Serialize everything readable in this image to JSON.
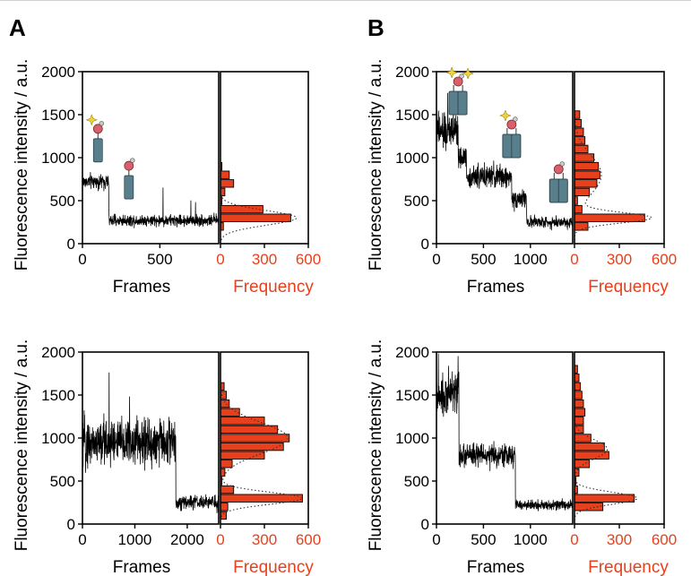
{
  "figure": {
    "panel_letters": [
      "A",
      "B"
    ],
    "colors": {
      "axis": "#000000",
      "trace": "#000000",
      "histogram": "#e8401c",
      "frequency_text": "#e8401c",
      "fit": "#333333",
      "protein": "#5a7f8c",
      "head": "#d9606a",
      "dye": "#f2d23a"
    }
  },
  "chart_data": [
    {
      "type": "line",
      "panel": "A",
      "ylabel": "Fluorescence intensity / a.u.",
      "xlabel": "Frames",
      "ylim": [
        0,
        2000
      ],
      "yticks": [
        "0",
        "500",
        "1000",
        "1500",
        "2000"
      ],
      "xlim": [
        0,
        880
      ],
      "xticks": [
        {
          "v": 0,
          "t": "0"
        },
        {
          "v": 500,
          "t": "500"
        }
      ],
      "segments": [
        {
          "from": 0,
          "to": 170,
          "level": 720,
          "noise": 60
        },
        {
          "from": 170,
          "to": 880,
          "level": 270,
          "noise": 45
        }
      ],
      "spikes": [
        {
          "x": 520,
          "y": 650
        },
        {
          "x": 700,
          "y": 500
        },
        {
          "x": 730,
          "y": 480
        }
      ],
      "icons": [
        {
          "type": "monomer-dye",
          "anchor_x": 100,
          "anchor_y": 950
        },
        {
          "type": "monomer",
          "anchor_x": 300,
          "anchor_y": 520
        }
      ],
      "histogram": {
        "xlabel": "Frequency",
        "xlim": [
          0,
          600
        ],
        "xticks": [
          "0",
          "300",
          "600"
        ],
        "bin_width": 100,
        "bins": [
          {
            "y": 200,
            "v": 20
          },
          {
            "y": 300,
            "v": 480
          },
          {
            "y": 400,
            "v": 290
          },
          {
            "y": 500,
            "v": 10
          },
          {
            "y": 600,
            "v": 30
          },
          {
            "y": 700,
            "v": 90
          },
          {
            "y": 800,
            "v": 60
          },
          {
            "y": 900,
            "v": 10
          }
        ],
        "fit": [
          {
            "mu": 300,
            "sigma": 85,
            "amp": 520
          }
        ]
      }
    },
    {
      "type": "line",
      "panel": "B",
      "ylabel": "Fluorescence intensity / a.u.",
      "xlabel": "Frames",
      "ylim": [
        0,
        2000
      ],
      "yticks": [
        "0",
        "500",
        "1000",
        "1500",
        "2000"
      ],
      "xlim": [
        0,
        1450
      ],
      "xticks": [
        {
          "v": 0,
          "t": "0"
        },
        {
          "v": 500,
          "t": "500"
        },
        {
          "v": 1000,
          "t": "1000"
        }
      ],
      "segments": [
        {
          "from": 0,
          "to": 230,
          "level": 1300,
          "noise": 150
        },
        {
          "from": 230,
          "to": 320,
          "level": 1000,
          "noise": 80
        },
        {
          "from": 320,
          "to": 800,
          "level": 780,
          "noise": 90
        },
        {
          "from": 800,
          "to": 960,
          "level": 520,
          "noise": 80
        },
        {
          "from": 960,
          "to": 1450,
          "level": 250,
          "noise": 45
        }
      ],
      "spikes": [
        {
          "x": 120,
          "y": 1750
        },
        {
          "x": 180,
          "y": 1580
        }
      ],
      "icons": [
        {
          "type": "trimer-3dye",
          "anchor_x": 230,
          "anchor_y": 1500
        },
        {
          "type": "trimer-1dye",
          "anchor_x": 800,
          "anchor_y": 1000
        },
        {
          "type": "trimer",
          "anchor_x": 1300,
          "anchor_y": 480
        }
      ],
      "histogram": {
        "xlabel": "Frequency",
        "xlim": [
          0,
          600
        ],
        "xticks": [
          "0",
          "300",
          "600"
        ],
        "bin_width": 100,
        "bins": [
          {
            "y": 200,
            "v": 90
          },
          {
            "y": 300,
            "v": 470
          },
          {
            "y": 400,
            "v": 50
          },
          {
            "y": 500,
            "v": 20
          },
          {
            "y": 600,
            "v": 100
          },
          {
            "y": 700,
            "v": 150
          },
          {
            "y": 800,
            "v": 170
          },
          {
            "y": 900,
            "v": 160
          },
          {
            "y": 1000,
            "v": 130
          },
          {
            "y": 1100,
            "v": 90
          },
          {
            "y": 1200,
            "v": 70
          },
          {
            "y": 1300,
            "v": 60
          },
          {
            "y": 1400,
            "v": 45
          },
          {
            "y": 1500,
            "v": 35
          }
        ],
        "fit": [
          {
            "mu": 300,
            "sigma": 60,
            "amp": 500
          },
          {
            "mu": 800,
            "sigma": 230,
            "amp": 180
          }
        ]
      }
    },
    {
      "type": "line",
      "panel": "A",
      "ylabel": "Fluorescence intensity / a.u.",
      "xlabel": "Frames",
      "ylim": [
        0,
        2000
      ],
      "yticks": [
        "0",
        "500",
        "1000",
        "1500",
        "2000"
      ],
      "xlim": [
        0,
        2600
      ],
      "xticks": [
        {
          "v": 0,
          "t": "0"
        },
        {
          "v": 1000,
          "t": "1000"
        },
        {
          "v": 2000,
          "t": "2000"
        }
      ],
      "segments": [
        {
          "from": 0,
          "to": 1780,
          "level": 950,
          "noise": 200
        },
        {
          "from": 1780,
          "to": 2600,
          "level": 250,
          "noise": 55
        }
      ],
      "spikes": [
        {
          "x": 510,
          "y": 1760
        },
        {
          "x": 900,
          "y": 1480
        }
      ],
      "icons": [],
      "histogram": {
        "xlabel": "Frequency",
        "xlim": [
          0,
          600
        ],
        "xticks": [
          "0",
          "300",
          "600"
        ],
        "bin_width": 100,
        "bins": [
          {
            "y": 100,
            "v": 40
          },
          {
            "y": 200,
            "v": 50
          },
          {
            "y": 300,
            "v": 560
          },
          {
            "y": 400,
            "v": 90
          },
          {
            "y": 500,
            "v": 10
          },
          {
            "y": 600,
            "v": 30
          },
          {
            "y": 700,
            "v": 80
          },
          {
            "y": 800,
            "v": 300
          },
          {
            "y": 900,
            "v": 430
          },
          {
            "y": 1000,
            "v": 470
          },
          {
            "y": 1100,
            "v": 390
          },
          {
            "y": 1200,
            "v": 300
          },
          {
            "y": 1300,
            "v": 130
          },
          {
            "y": 1400,
            "v": 60
          },
          {
            "y": 1500,
            "v": 40
          },
          {
            "y": 1600,
            "v": 25
          }
        ],
        "fit": [
          {
            "mu": 300,
            "sigma": 70,
            "amp": 560
          },
          {
            "mu": 1000,
            "sigma": 180,
            "amp": 460
          }
        ]
      }
    },
    {
      "type": "line",
      "panel": "B",
      "ylabel": "Fluorescence intensity / a.u.",
      "xlabel": "Frames",
      "ylim": [
        0,
        2000
      ],
      "yticks": [
        "0",
        "500",
        "1000",
        "1500",
        "2000"
      ],
      "xlim": [
        0,
        1450
      ],
      "xticks": [
        {
          "v": 0,
          "t": "0"
        },
        {
          "v": 500,
          "t": "500"
        },
        {
          "v": 1000,
          "t": "1000"
        }
      ],
      "segments": [
        {
          "from": 0,
          "to": 100,
          "level": 1450,
          "noise": 150
        },
        {
          "from": 100,
          "to": 240,
          "level": 1550,
          "noise": 170
        },
        {
          "from": 240,
          "to": 840,
          "level": 800,
          "noise": 90
        },
        {
          "from": 840,
          "to": 1450,
          "level": 220,
          "noise": 40
        }
      ],
      "spikes": [
        {
          "x": 20,
          "y": 1980
        },
        {
          "x": 230,
          "y": 1950
        }
      ],
      "icons": [],
      "histogram": {
        "xlabel": "Frequency",
        "xlim": [
          0,
          600
        ],
        "xticks": [
          "0",
          "300",
          "600"
        ],
        "bin_width": 100,
        "bins": [
          {
            "y": 200,
            "v": 190
          },
          {
            "y": 300,
            "v": 400
          },
          {
            "y": 400,
            "v": 20
          },
          {
            "y": 500,
            "v": 10
          },
          {
            "y": 600,
            "v": 30
          },
          {
            "y": 700,
            "v": 100
          },
          {
            "y": 800,
            "v": 230
          },
          {
            "y": 900,
            "v": 200
          },
          {
            "y": 1000,
            "v": 110
          },
          {
            "y": 1100,
            "v": 60
          },
          {
            "y": 1200,
            "v": 60
          },
          {
            "y": 1300,
            "v": 70
          },
          {
            "y": 1400,
            "v": 60
          },
          {
            "y": 1500,
            "v": 50
          },
          {
            "y": 1600,
            "v": 40
          },
          {
            "y": 1700,
            "v": 30
          },
          {
            "y": 1800,
            "v": 20
          }
        ],
        "fit": [
          {
            "mu": 300,
            "sigma": 70,
            "amp": 420
          },
          {
            "mu": 870,
            "sigma": 110,
            "amp": 220
          }
        ]
      }
    }
  ]
}
